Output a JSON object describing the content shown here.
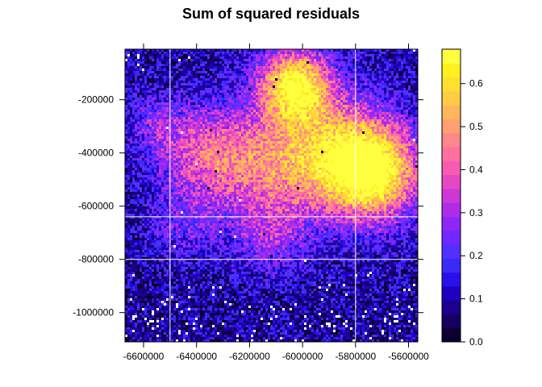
{
  "chart_data": {
    "type": "heatmap",
    "title": "Sum of squared residuals",
    "xlabel": "",
    "ylabel": "",
    "xlim": [
      -6670000,
      -5565000
    ],
    "ylim": [
      -1110000,
      -10000
    ],
    "x_ticks": [
      -6600000,
      -6400000,
      -6200000,
      -6000000,
      -5800000,
      -5600000
    ],
    "x_tick_labels": [
      "-6600000",
      "-6400000",
      "-6200000",
      "-6000000",
      "-5800000",
      "-5600000"
    ],
    "y_ticks": [
      -200000,
      -400000,
      -600000,
      -800000,
      -1000000
    ],
    "y_tick_labels": [
      "-200000",
      "-400000",
      "-600000",
      "-800000",
      "-1000000"
    ],
    "grid_lines": {
      "x": [
        -6500000,
        -5800000
      ],
      "y": [
        -640000,
        -800000
      ]
    },
    "colorbar": {
      "range": [
        0,
        0.68
      ],
      "ticks": [
        0.0,
        0.1,
        0.2,
        0.3,
        0.4,
        0.5,
        0.6
      ],
      "tick_labels": [
        "0.0",
        "0.1",
        "0.2",
        "0.3",
        "0.4",
        "0.5",
        "0.6"
      ],
      "colors": [
        "#0d0030",
        "#150060",
        "#1b0090",
        "#2000c0",
        "#2a10e8",
        "#3a2af8",
        "#5230ff",
        "#7028ff",
        "#8e26f8",
        "#ae2ce8",
        "#cc38d8",
        "#e648c4",
        "#f85ab2",
        "#ff70a0",
        "#ff888a",
        "#ffa070",
        "#ffb65a",
        "#ffcc44",
        "#ffe030",
        "#fff020",
        "#ffff40"
      ]
    }
  }
}
